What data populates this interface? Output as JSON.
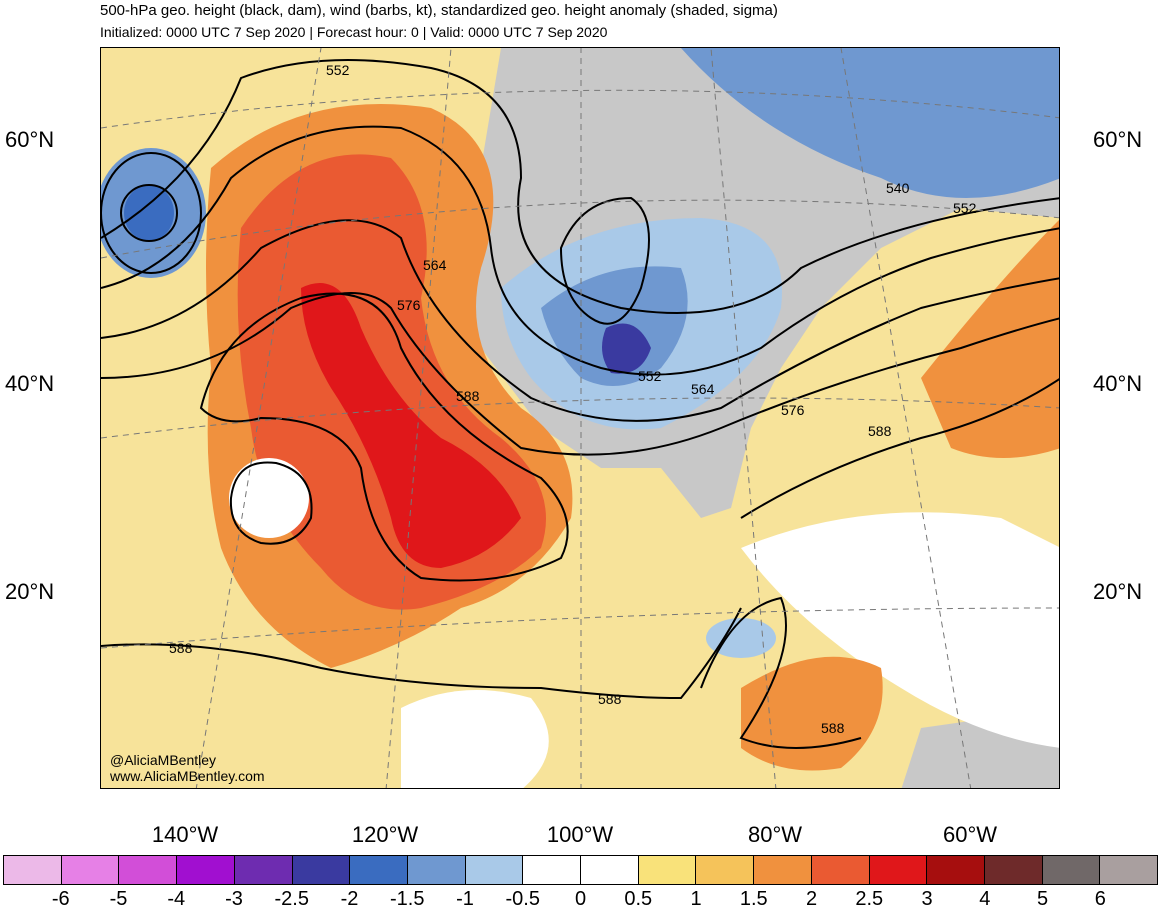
{
  "header": {
    "title": "500-hPa geo. height (black, dam), wind (barbs, kt), standardized geo. height anomaly (shaded, sigma)",
    "subtitle": "Initialized: 0000 UTC 7 Sep 2020 | Forecast hour: 0 | Valid: 0000 UTC 7 Sep 2020"
  },
  "map": {
    "lat_labels": [
      "60°N",
      "40°N",
      "20°N"
    ],
    "lon_labels": [
      "140°W",
      "120°W",
      "100°W",
      "80°W",
      "60°W"
    ],
    "contour_labels": [
      "552",
      "540",
      "552",
      "564",
      "576",
      "552",
      "564",
      "576",
      "588",
      "588",
      "588",
      "588",
      "588"
    ],
    "land_color": "#c8c8c8",
    "contour_color": "#000000"
  },
  "credits": {
    "handle": "@AliciaMBentley",
    "website": "www.AliciaMBentley.com"
  },
  "colorbar": {
    "ticks": [
      "-6",
      "-5",
      "-4",
      "-3",
      "-2.5",
      "-2",
      "-1.5",
      "-1",
      "-0.5",
      "0",
      "0.5",
      "1",
      "1.5",
      "2",
      "2.5",
      "3",
      "4",
      "5",
      "6"
    ],
    "colors": [
      "#ecb9e8",
      "#e680e6",
      "#d24ed8",
      "#a10fd0",
      "#6e2cb0",
      "#3a3aa0",
      "#3a6cc0",
      "#6f98d0",
      "#a9c9e8",
      "#ffffff",
      "#ffffff",
      "#f9e27a",
      "#f5c35a",
      "#f0913e",
      "#ea5a32",
      "#e0171a",
      "#a60e0e",
      "#6e2a2a",
      "#706868",
      "#a99f9f"
    ]
  }
}
